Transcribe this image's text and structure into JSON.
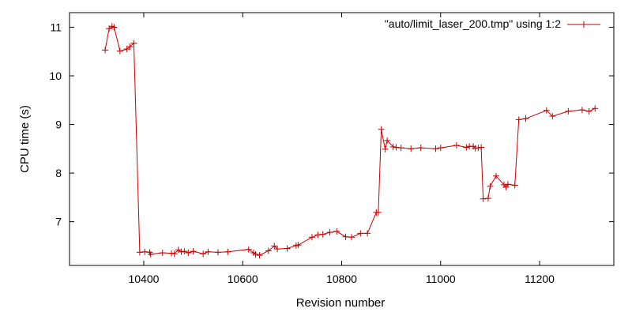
{
  "chart_data": {
    "type": "line",
    "xlabel": "Revision number",
    "ylabel": "CPU time (s)",
    "xlim": [
      10250,
      11350
    ],
    "ylim": [
      6.1,
      11.3
    ],
    "xticks": [
      10400,
      10600,
      10800,
      11000,
      11200
    ],
    "yticks": [
      7,
      8,
      9,
      10,
      11
    ],
    "grid": false,
    "legend_position": "top-right",
    "colors": {
      "series": "#cc0000",
      "axes": "#000000"
    },
    "series": [
      {
        "name": "\"auto/limit_laser_200.tmp\" using 1:2",
        "marker": "plus",
        "points": [
          [
            10322,
            10.53
          ],
          [
            10330,
            10.97
          ],
          [
            10336,
            11.02
          ],
          [
            10340,
            11.0
          ],
          [
            10352,
            10.51
          ],
          [
            10366,
            10.55
          ],
          [
            10372,
            10.6
          ],
          [
            10380,
            10.67
          ],
          [
            10392,
            6.37
          ],
          [
            10402,
            6.38
          ],
          [
            10412,
            6.37
          ],
          [
            10414,
            6.33
          ],
          [
            10438,
            6.36
          ],
          [
            10456,
            6.35
          ],
          [
            10462,
            6.34
          ],
          [
            10470,
            6.42
          ],
          [
            10476,
            6.38
          ],
          [
            10482,
            6.39
          ],
          [
            10490,
            6.36
          ],
          [
            10500,
            6.39
          ],
          [
            10520,
            6.34
          ],
          [
            10530,
            6.38
          ],
          [
            10550,
            6.37
          ],
          [
            10570,
            6.38
          ],
          [
            10612,
            6.43
          ],
          [
            10622,
            6.36
          ],
          [
            10626,
            6.33
          ],
          [
            10634,
            6.31
          ],
          [
            10652,
            6.4
          ],
          [
            10664,
            6.5
          ],
          [
            10670,
            6.44
          ],
          [
            10690,
            6.45
          ],
          [
            10708,
            6.51
          ],
          [
            10712,
            6.52
          ],
          [
            10740,
            6.68
          ],
          [
            10752,
            6.73
          ],
          [
            10762,
            6.74
          ],
          [
            10776,
            6.78
          ],
          [
            10790,
            6.8
          ],
          [
            10808,
            6.69
          ],
          [
            10820,
            6.68
          ],
          [
            10838,
            6.76
          ],
          [
            10852,
            6.76
          ],
          [
            10870,
            7.19
          ],
          [
            10874,
            7.19
          ],
          [
            10880,
            8.9
          ],
          [
            10888,
            8.49
          ],
          [
            10892,
            8.67
          ],
          [
            10904,
            8.54
          ],
          [
            10910,
            8.53
          ],
          [
            10920,
            8.52
          ],
          [
            10940,
            8.5
          ],
          [
            10960,
            8.52
          ],
          [
            10990,
            8.5
          ],
          [
            11000,
            8.52
          ],
          [
            11032,
            8.57
          ],
          [
            11052,
            8.53
          ],
          [
            11058,
            8.55
          ],
          [
            11066,
            8.55
          ],
          [
            11070,
            8.51
          ],
          [
            11076,
            8.52
          ],
          [
            11082,
            8.53
          ],
          [
            11086,
            7.47
          ],
          [
            11096,
            7.48
          ],
          [
            11100,
            7.73
          ],
          [
            11112,
            7.94
          ],
          [
            11128,
            7.76
          ],
          [
            11132,
            7.71
          ],
          [
            11136,
            7.77
          ],
          [
            11150,
            7.75
          ],
          [
            11158,
            9.1
          ],
          [
            11172,
            9.12
          ],
          [
            11214,
            9.29
          ],
          [
            11226,
            9.17
          ],
          [
            11258,
            9.27
          ],
          [
            11286,
            9.3
          ],
          [
            11300,
            9.27
          ],
          [
            11312,
            9.33
          ]
        ]
      }
    ]
  }
}
